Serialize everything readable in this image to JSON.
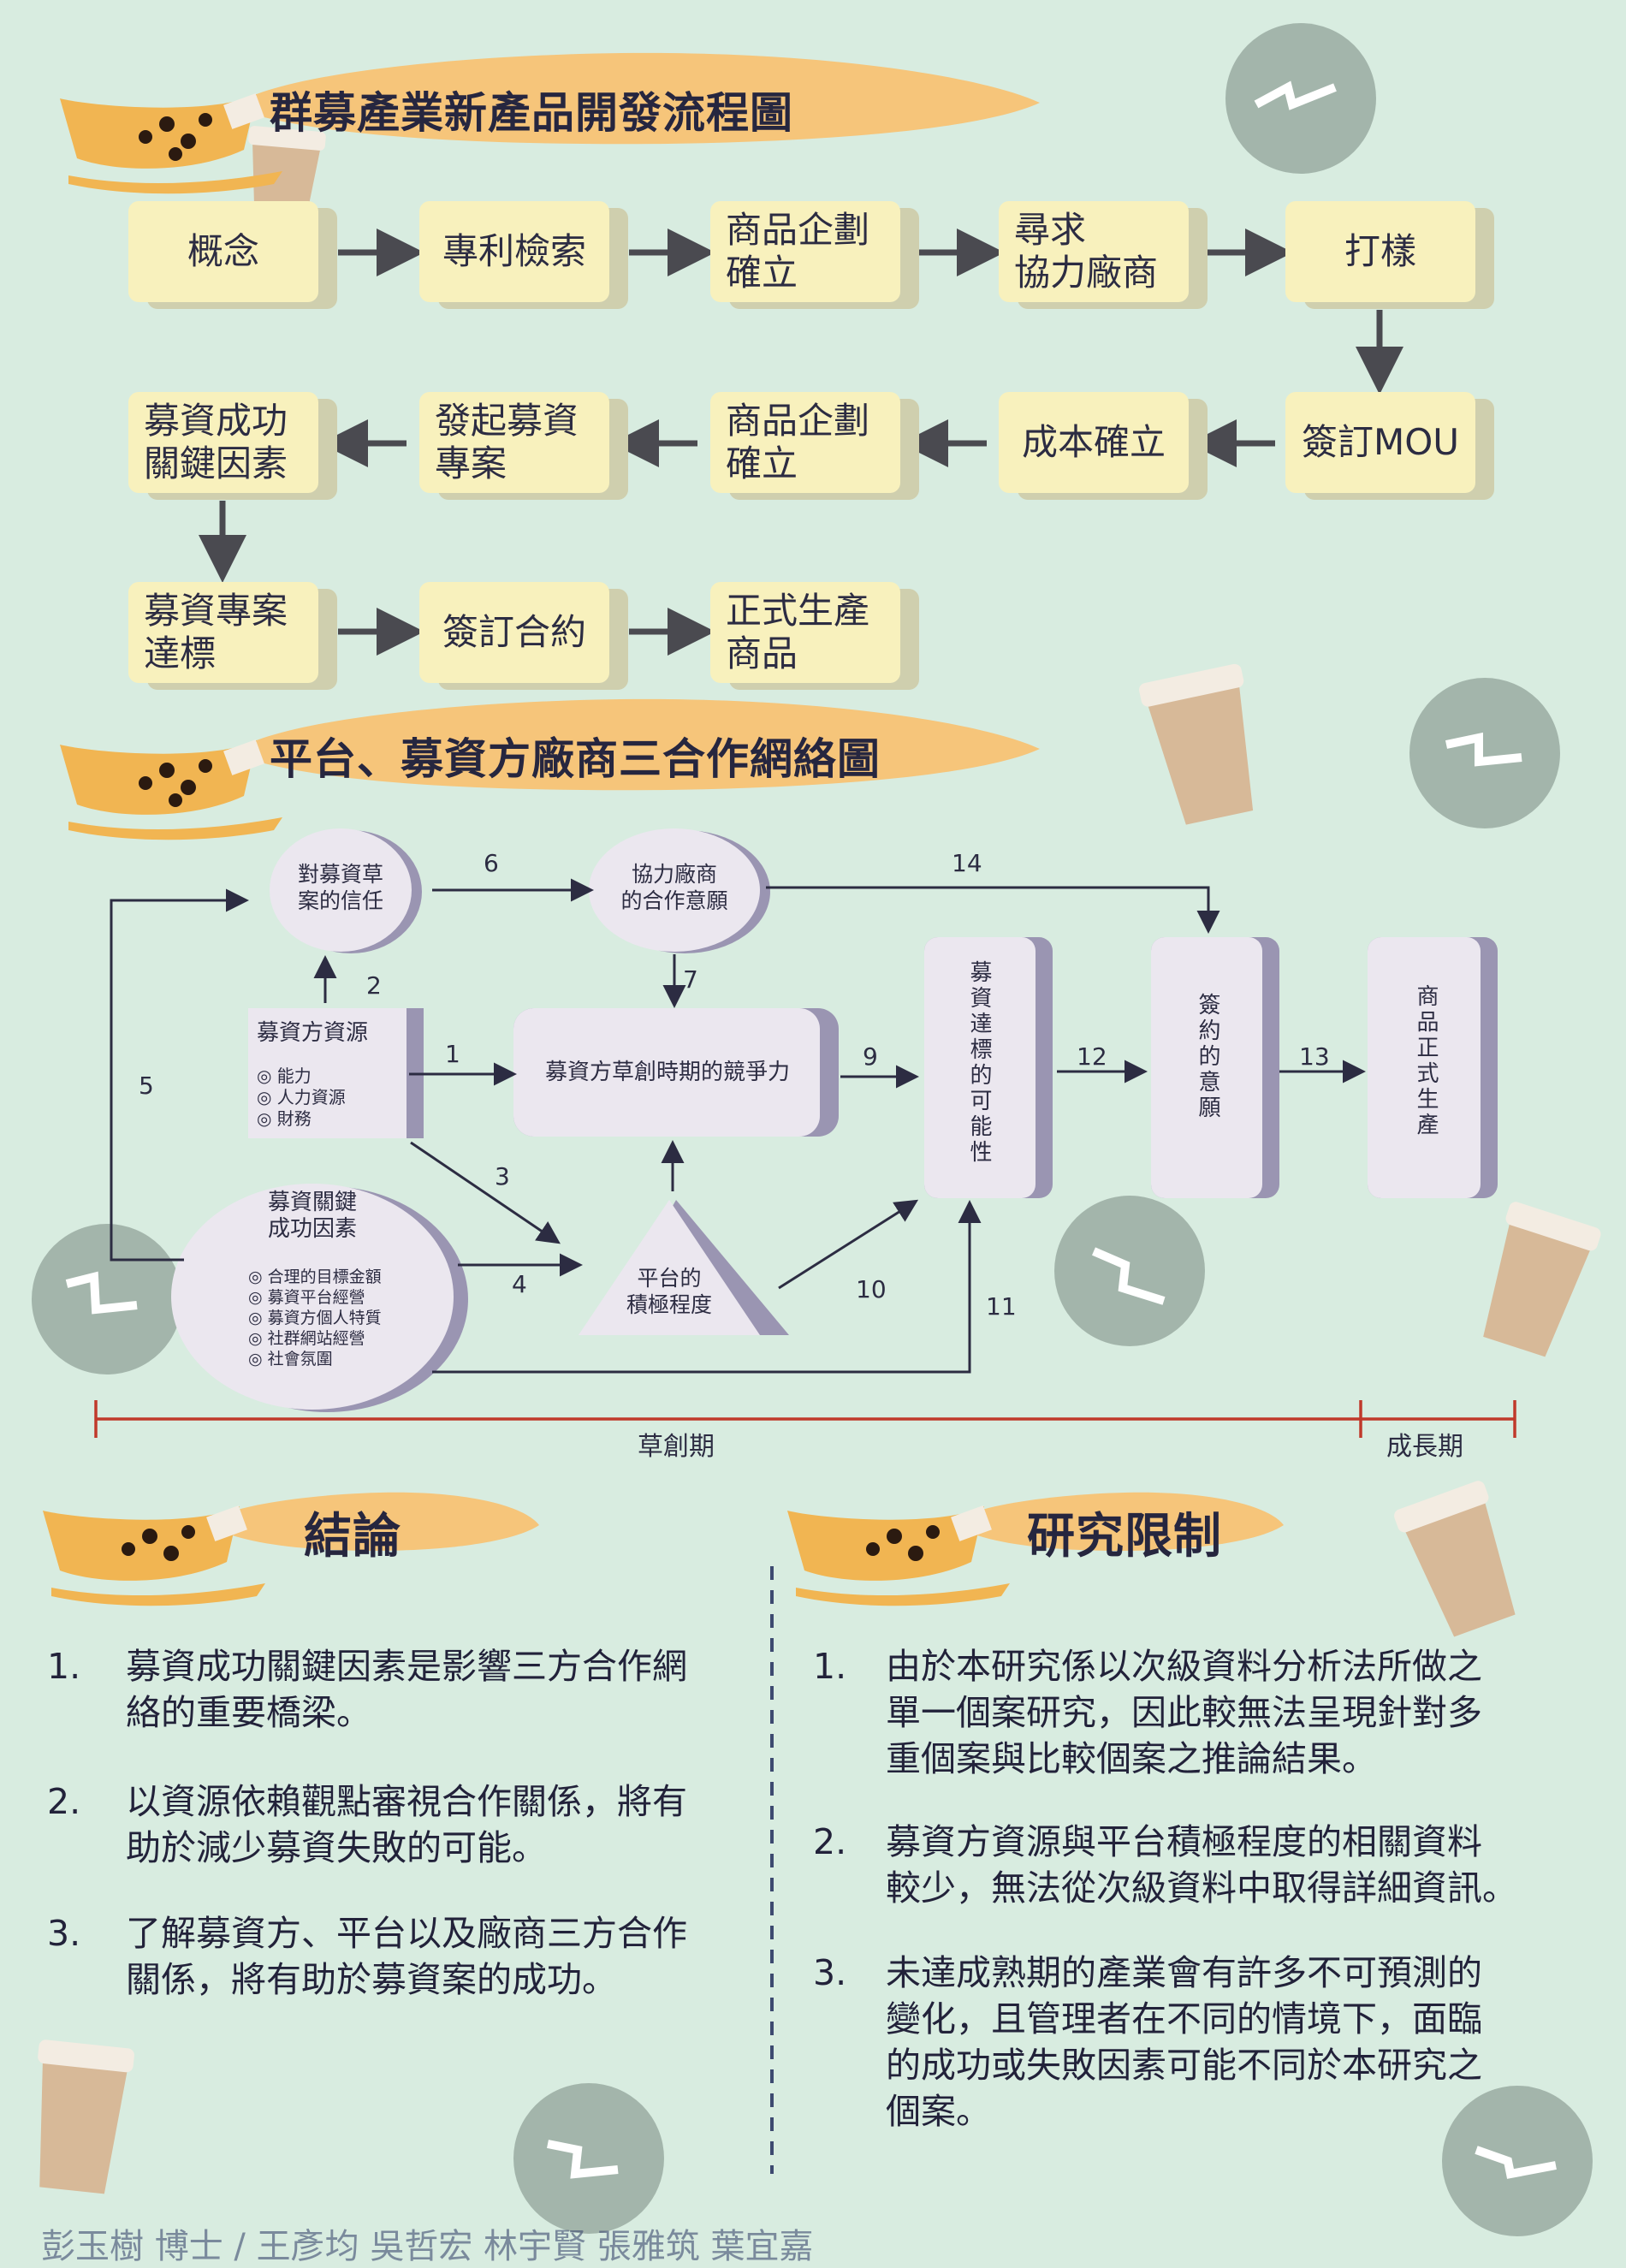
{
  "sections": {
    "flow_title": "群募產業新產品開發流程圖",
    "network_title": "平台、募資方廠商三合作網絡圖",
    "conclusion_title": "結論",
    "limits_title": "研究限制"
  },
  "flow": {
    "row1": [
      "概念",
      "專利檢索",
      "商品企劃確立",
      "尋求協力廠商",
      "打樣"
    ],
    "row2": [
      "募資成功關鍵因素",
      "發起募資專案",
      "商品企劃確立",
      "成本確立",
      "簽訂MOU"
    ],
    "row3": [
      "募資專案達標",
      "簽訂合約",
      "正式生產商品"
    ]
  },
  "network": {
    "trust": "對募資草案的信任",
    "partner_will": "協力廠商的合作意願",
    "resources_title": "募資方資源",
    "resources_items": [
      "◎ 能力",
      "◎ 人力資源",
      "◎ 財務"
    ],
    "competitiveness": "募資方草創時期的競爭力",
    "ksf_title": "募資關鍵成功因素",
    "ksf_items": [
      "◎ 合理的目標金額",
      "◎ 募資平台經營",
      "◎ 募資方個人特質",
      "◎ 社群網站經營",
      "◎ 社會氛圍"
    ],
    "platform": "平台的積極程度",
    "possibility": "募資達標的可能性",
    "sign_will": "簽約的意願",
    "production": "商品正式生產",
    "edge_labels": [
      "1",
      "2",
      "3",
      "4",
      "5",
      "6",
      "7",
      "9",
      "10",
      "11",
      "12",
      "13",
      "14"
    ],
    "timeline": {
      "startup": "草創期",
      "growth": "成長期"
    }
  },
  "conclusions": [
    {
      "n": "1.",
      "lines": [
        "募資成功關鍵因素是影響三方合作網",
        "絡的重要橋梁。"
      ]
    },
    {
      "n": "2.",
      "lines": [
        "以資源依賴觀點審視合作關係，將有",
        "助於減少募資失敗的可能。"
      ]
    },
    {
      "n": "3.",
      "lines": [
        "了解募資方、平台以及廠商三方合作",
        "關係，將有助於募資案的成功。"
      ]
    }
  ],
  "limits": [
    {
      "n": "1.",
      "lines": [
        "由於本研究係以次級資料分析法所做之",
        "單一個案研究，因此較無法呈現針對多",
        "重個案與比較個案之推論結果。"
      ]
    },
    {
      "n": "2.",
      "lines": [
        "募資方資源與平台積極程度的相關資料",
        "較少，無法從次級資料中取得詳細資訊。"
      ]
    },
    {
      "n": "3.",
      "lines": [
        "未達成熟期的產業會有許多不可預測的",
        "變化，且管理者在不同的情境下，面臨",
        "的成功或失敗因素可能不同於本研究之",
        "個案。"
      ]
    }
  ],
  "footer": "彭玉樹 博士 / 王彥均 吳哲宏 林宇賢 張雅筑 葉宜嘉",
  "colors": {
    "background": "#d8ece0",
    "box": "#f8f1bd",
    "node": "#ebe7ef",
    "node_shadow": "#9a95b2",
    "timeline": "#c0392b",
    "banner": "#f6c57a"
  }
}
